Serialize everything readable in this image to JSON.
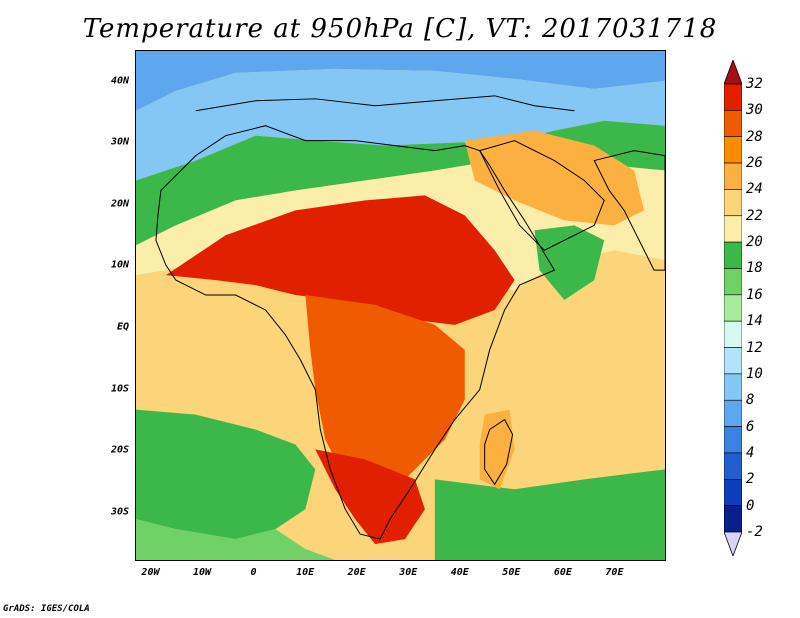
{
  "title": "Temperature at 950hPa [C], VT: 2017031718",
  "credit": "GrADS: IGES/COLA",
  "map": {
    "lon_range": [
      -23,
      80
    ],
    "lat_range": [
      -38,
      45
    ],
    "lat_ticks": [
      {
        "value": 40,
        "label": "40N"
      },
      {
        "value": 30,
        "label": "30N"
      },
      {
        "value": 20,
        "label": "20N"
      },
      {
        "value": 10,
        "label": "10N"
      },
      {
        "value": 0,
        "label": "EQ"
      },
      {
        "value": -10,
        "label": "10S"
      },
      {
        "value": -20,
        "label": "20S"
      },
      {
        "value": -30,
        "label": "30S"
      }
    ],
    "lon_ticks": [
      {
        "value": -20,
        "label": "20W"
      },
      {
        "value": -10,
        "label": "10W"
      },
      {
        "value": 0,
        "label": "0"
      },
      {
        "value": 10,
        "label": "10E"
      },
      {
        "value": 20,
        "label": "20E"
      },
      {
        "value": 30,
        "label": "30E"
      },
      {
        "value": 40,
        "label": "40E"
      },
      {
        "value": 50,
        "label": "50E"
      },
      {
        "value": 60,
        "label": "60E"
      },
      {
        "value": 70,
        "label": "70E"
      }
    ]
  },
  "colorbar": {
    "levels": [
      "32",
      "30",
      "28",
      "26",
      "24",
      "22",
      "20",
      "18",
      "16",
      "14",
      "12",
      "10",
      "8",
      "6",
      "4",
      "2",
      "0",
      "-2"
    ],
    "colors": [
      "#a50f15",
      "#e02000",
      "#f05a00",
      "#fa8c00",
      "#fbb040",
      "#fcd57a",
      "#fbeeaa",
      "#3cb84a",
      "#6fd166",
      "#a6ec9a",
      "#d6f8f0",
      "#b4e2fa",
      "#84c6f4",
      "#5ea6ee",
      "#3c82e2",
      "#1f5fd0",
      "#0d3dba",
      "#081f8c",
      "#0a0a6e"
    ],
    "top_arrow_color": "#a50f15",
    "bottom_arrow_color": "#d8d4f8"
  }
}
